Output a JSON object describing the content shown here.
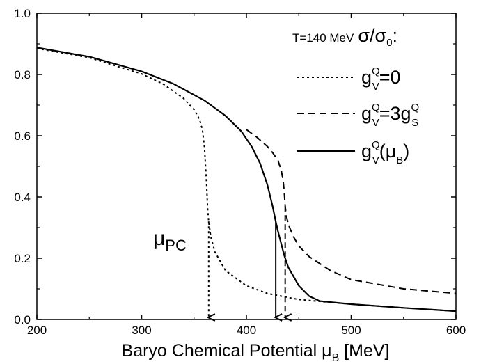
{
  "chart_data": {
    "type": "line",
    "xlabel": "Baryo Chemical Potential μ",
    "xlabel_sub": "B",
    "xlabel_unit": " [MeV]",
    "xlim": [
      200,
      600
    ],
    "ylim": [
      0.0,
      1.0
    ],
    "x_ticks": [
      "200",
      "300",
      "400",
      "500",
      "600"
    ],
    "y_ticks": [
      "0.0",
      "0.2",
      "0.4",
      "0.6",
      "0.8",
      "1.0"
    ],
    "legend": {
      "header_temp": "T=140 MeV",
      "header_ratio": "σ/σ",
      "header_ratio_sub": "0",
      "header_colon": ":",
      "placement": "top-right"
    },
    "annotation": {
      "text": "μ",
      "sub": "PC"
    },
    "series": [
      {
        "name": "g_V^Q=0",
        "legend_main": "g",
        "legend_sup": "Q",
        "legend_sub": "V",
        "legend_rest": "=0",
        "style": "dotted",
        "x": [
          200,
          250,
          300,
          320,
          340,
          350,
          355,
          358,
          360,
          362,
          363,
          364,
          366,
          370,
          380,
          400,
          420,
          450,
          500,
          550,
          600
        ],
        "y": [
          0.885,
          0.855,
          0.802,
          0.77,
          0.722,
          0.685,
          0.655,
          0.62,
          0.56,
          0.44,
          0.36,
          0.32,
          0.27,
          0.22,
          0.16,
          0.11,
          0.085,
          0.065,
          0.05,
          0.038,
          0.027
        ],
        "arrow_x": 364
      },
      {
        "name": "g_V^Q=3g_S^Q",
        "legend_main": "g",
        "legend_sup": "Q",
        "legend_sub": "V",
        "legend_rest": "=3g",
        "legend_sup2": "Q",
        "legend_sub2": "S",
        "style": "dashed",
        "x": [
          400,
          410,
          420,
          425,
          430,
          433,
          435,
          436,
          437,
          438,
          440,
          445,
          450,
          460,
          480,
          500,
          550,
          600
        ],
        "y": [
          0.62,
          0.595,
          0.565,
          0.545,
          0.52,
          0.49,
          0.455,
          0.42,
          0.37,
          0.34,
          0.31,
          0.27,
          0.24,
          0.205,
          0.16,
          0.13,
          0.1,
          0.085
        ],
        "arrow_x": 437
      },
      {
        "name": "g_V^Q(μ_B)",
        "legend_main": "g",
        "legend_sup": "Q",
        "legend_sub": "V",
        "legend_rest": "(μ",
        "legend_sub2": "B",
        "legend_end": ")",
        "style": "solid",
        "x": [
          200,
          250,
          300,
          330,
          360,
          380,
          395,
          405,
          413,
          420,
          425,
          428,
          430,
          433,
          436,
          440,
          450,
          460,
          470,
          500,
          550,
          600
        ],
        "y": [
          0.888,
          0.858,
          0.81,
          0.77,
          0.715,
          0.665,
          0.615,
          0.565,
          0.51,
          0.44,
          0.37,
          0.32,
          0.29,
          0.25,
          0.21,
          0.17,
          0.11,
          0.076,
          0.06,
          0.05,
          0.038,
          0.027
        ],
        "arrow_x": 428
      }
    ]
  }
}
